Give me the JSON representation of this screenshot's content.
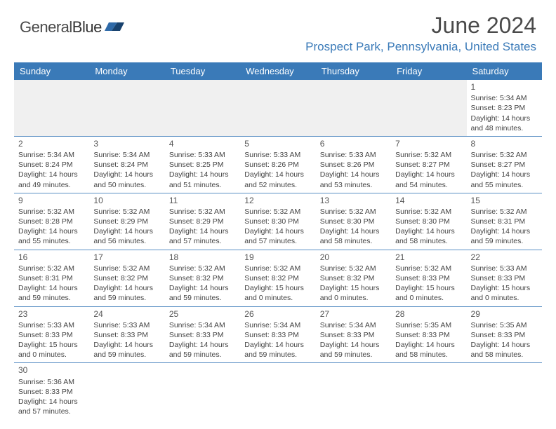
{
  "logo": {
    "text1": "General",
    "text2": "Blue"
  },
  "title": "June 2024",
  "location": "Prospect Park, Pennsylvania, United States",
  "colors": {
    "header_bg": "#3a7ab8",
    "header_text": "#ffffff",
    "rule": "#5a8fc4",
    "empty_bg": "#f0f0f0",
    "title_color": "#4a4a4a",
    "location_color": "#3a7ab8"
  },
  "weekdays": [
    "Sunday",
    "Monday",
    "Tuesday",
    "Wednesday",
    "Thursday",
    "Friday",
    "Saturday"
  ],
  "weeks": [
    [
      null,
      null,
      null,
      null,
      null,
      null,
      {
        "d": "1",
        "sr": "5:34 AM",
        "ss": "8:23 PM",
        "dl": "14 hours and 48 minutes."
      }
    ],
    [
      {
        "d": "2",
        "sr": "5:34 AM",
        "ss": "8:24 PM",
        "dl": "14 hours and 49 minutes."
      },
      {
        "d": "3",
        "sr": "5:34 AM",
        "ss": "8:24 PM",
        "dl": "14 hours and 50 minutes."
      },
      {
        "d": "4",
        "sr": "5:33 AM",
        "ss": "8:25 PM",
        "dl": "14 hours and 51 minutes."
      },
      {
        "d": "5",
        "sr": "5:33 AM",
        "ss": "8:26 PM",
        "dl": "14 hours and 52 minutes."
      },
      {
        "d": "6",
        "sr": "5:33 AM",
        "ss": "8:26 PM",
        "dl": "14 hours and 53 minutes."
      },
      {
        "d": "7",
        "sr": "5:32 AM",
        "ss": "8:27 PM",
        "dl": "14 hours and 54 minutes."
      },
      {
        "d": "8",
        "sr": "5:32 AM",
        "ss": "8:27 PM",
        "dl": "14 hours and 55 minutes."
      }
    ],
    [
      {
        "d": "9",
        "sr": "5:32 AM",
        "ss": "8:28 PM",
        "dl": "14 hours and 55 minutes."
      },
      {
        "d": "10",
        "sr": "5:32 AM",
        "ss": "8:29 PM",
        "dl": "14 hours and 56 minutes."
      },
      {
        "d": "11",
        "sr": "5:32 AM",
        "ss": "8:29 PM",
        "dl": "14 hours and 57 minutes."
      },
      {
        "d": "12",
        "sr": "5:32 AM",
        "ss": "8:30 PM",
        "dl": "14 hours and 57 minutes."
      },
      {
        "d": "13",
        "sr": "5:32 AM",
        "ss": "8:30 PM",
        "dl": "14 hours and 58 minutes."
      },
      {
        "d": "14",
        "sr": "5:32 AM",
        "ss": "8:30 PM",
        "dl": "14 hours and 58 minutes."
      },
      {
        "d": "15",
        "sr": "5:32 AM",
        "ss": "8:31 PM",
        "dl": "14 hours and 59 minutes."
      }
    ],
    [
      {
        "d": "16",
        "sr": "5:32 AM",
        "ss": "8:31 PM",
        "dl": "14 hours and 59 minutes."
      },
      {
        "d": "17",
        "sr": "5:32 AM",
        "ss": "8:32 PM",
        "dl": "14 hours and 59 minutes."
      },
      {
        "d": "18",
        "sr": "5:32 AM",
        "ss": "8:32 PM",
        "dl": "14 hours and 59 minutes."
      },
      {
        "d": "19",
        "sr": "5:32 AM",
        "ss": "8:32 PM",
        "dl": "15 hours and 0 minutes."
      },
      {
        "d": "20",
        "sr": "5:32 AM",
        "ss": "8:32 PM",
        "dl": "15 hours and 0 minutes."
      },
      {
        "d": "21",
        "sr": "5:32 AM",
        "ss": "8:33 PM",
        "dl": "15 hours and 0 minutes."
      },
      {
        "d": "22",
        "sr": "5:33 AM",
        "ss": "8:33 PM",
        "dl": "15 hours and 0 minutes."
      }
    ],
    [
      {
        "d": "23",
        "sr": "5:33 AM",
        "ss": "8:33 PM",
        "dl": "15 hours and 0 minutes."
      },
      {
        "d": "24",
        "sr": "5:33 AM",
        "ss": "8:33 PM",
        "dl": "14 hours and 59 minutes."
      },
      {
        "d": "25",
        "sr": "5:34 AM",
        "ss": "8:33 PM",
        "dl": "14 hours and 59 minutes."
      },
      {
        "d": "26",
        "sr": "5:34 AM",
        "ss": "8:33 PM",
        "dl": "14 hours and 59 minutes."
      },
      {
        "d": "27",
        "sr": "5:34 AM",
        "ss": "8:33 PM",
        "dl": "14 hours and 59 minutes."
      },
      {
        "d": "28",
        "sr": "5:35 AM",
        "ss": "8:33 PM",
        "dl": "14 hours and 58 minutes."
      },
      {
        "d": "29",
        "sr": "5:35 AM",
        "ss": "8:33 PM",
        "dl": "14 hours and 58 minutes."
      }
    ],
    [
      {
        "d": "30",
        "sr": "5:36 AM",
        "ss": "8:33 PM",
        "dl": "14 hours and 57 minutes."
      },
      null,
      null,
      null,
      null,
      null,
      null
    ]
  ],
  "labels": {
    "sunrise": "Sunrise:",
    "sunset": "Sunset:",
    "daylight": "Daylight:"
  }
}
